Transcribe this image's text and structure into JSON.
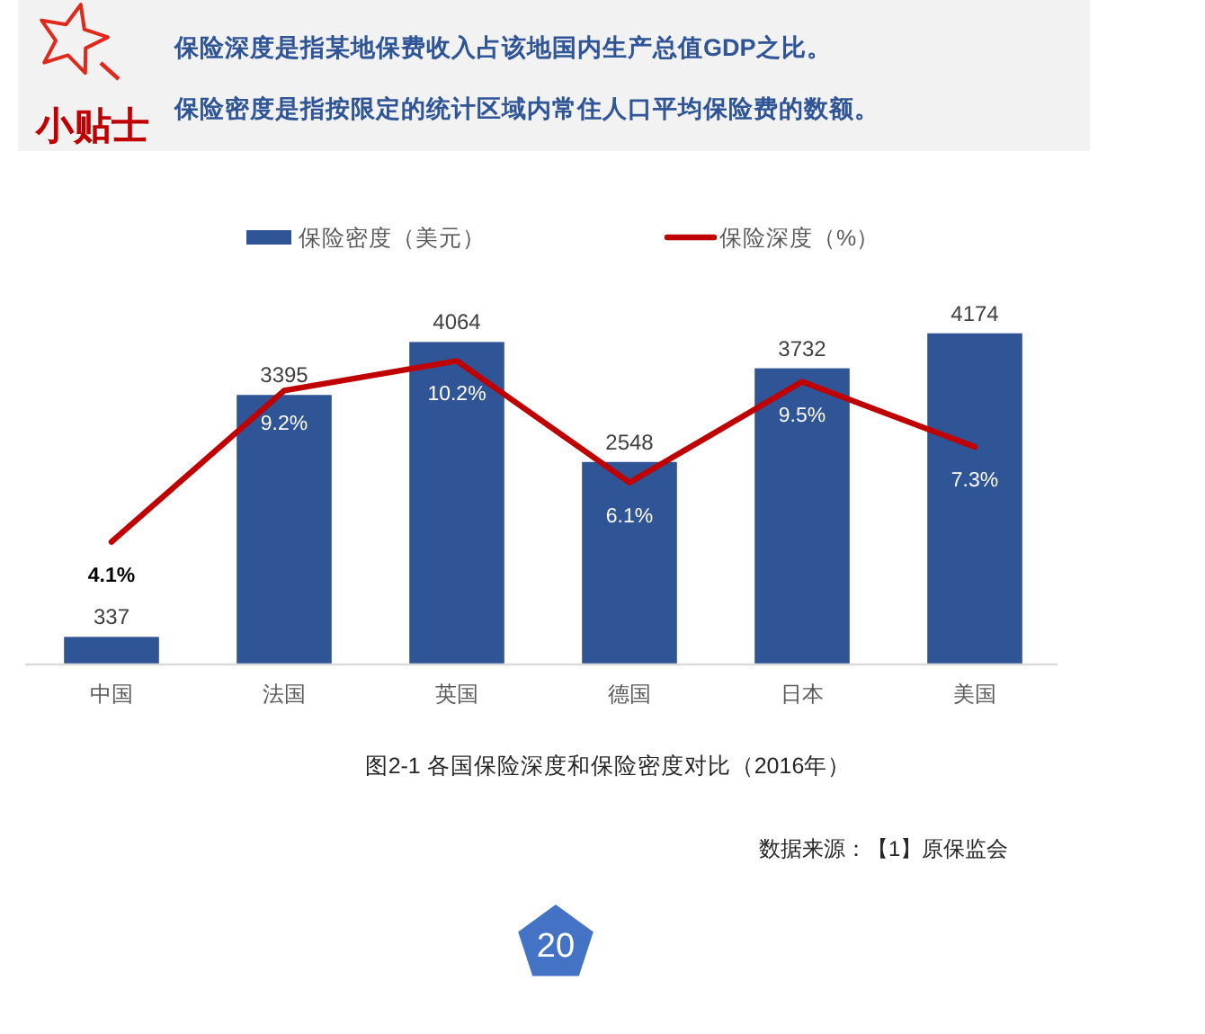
{
  "chart_data": {
    "type": "bar",
    "title": "图2-1  各国保险深度和保险密度对比（2016年）",
    "categories": [
      "中国",
      "法国",
      "英国",
      "德国",
      "日本",
      "美国"
    ],
    "series": [
      {
        "name": "保险密度（美元）",
        "color": "#2f5597",
        "values": [
          337,
          3395,
          4064,
          2548,
          3732,
          4174
        ],
        "data_labels": true
      },
      {
        "name": "保险深度（%）",
        "type": "line",
        "axis": "y2",
        "color": "#c00000",
        "values": [
          4.1,
          9.2,
          10.2,
          6.1,
          9.5,
          7.3
        ],
        "value_labels": [
          "4.1%",
          "9.2%",
          "10.2%",
          "6.1%",
          "9.5%",
          "7.3%"
        ]
      }
    ],
    "tick_labels": "x",
    "legend": "top",
    "annotations": [
      "小贴士",
      "保险深度是指某地保费收入占该地国内生产总值GDP之比。",
      "保险密度是指按限定的统计区域内常住人口平均保险费的数额。",
      "数据来源：【1】原保监会",
      "20"
    ]
  }
}
